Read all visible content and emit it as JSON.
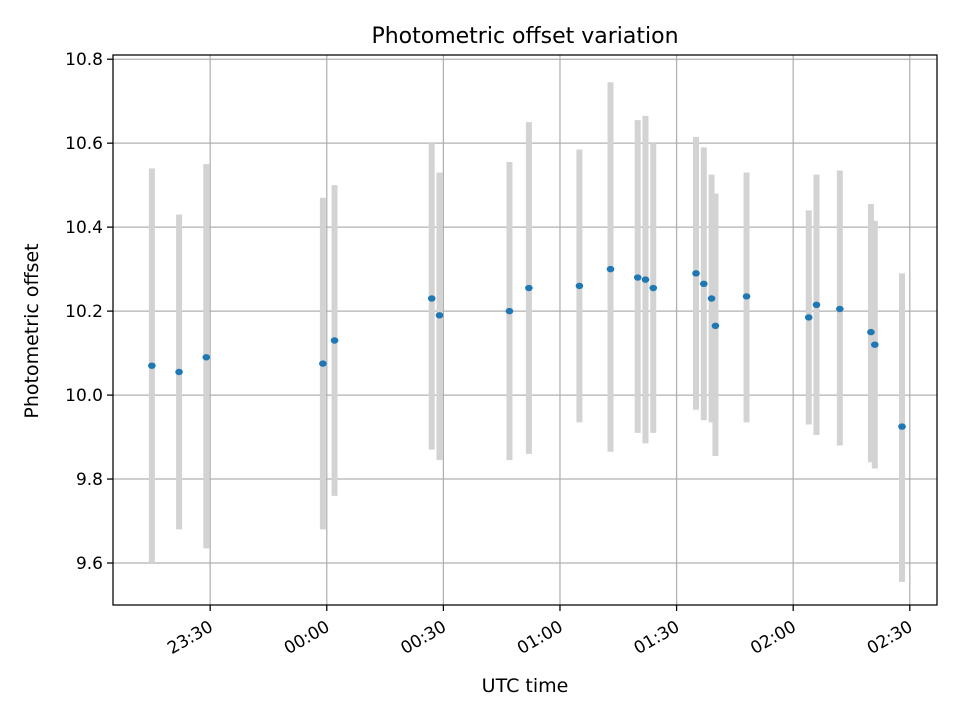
{
  "chart_data": {
    "type": "scatter",
    "title": "Photometric offset variation",
    "xlabel": "UTC time",
    "ylabel": "Photometric offset",
    "x_axis_kind": "time-of-day (wraps past midnight)",
    "xlim": [
      "23:05",
      "02:37"
    ],
    "ylim": [
      9.5,
      10.81
    ],
    "xticks": [
      "23:30",
      "00:00",
      "00:30",
      "01:00",
      "01:30",
      "02:00",
      "02:30"
    ],
    "yticks": [
      9.6,
      9.8,
      10.0,
      10.2,
      10.4,
      10.6,
      10.8
    ],
    "ytick_labels": [
      "9.6",
      "9.8",
      "10.0",
      "10.2",
      "10.4",
      "10.6",
      "10.8"
    ],
    "grid": true,
    "legend": "none",
    "colors": {
      "point": "#1f77b4",
      "errorbar": "#d3d3d3",
      "grid": "#b0b0b0"
    },
    "series": [
      {
        "marker": "point with vertical error bar",
        "points": [
          {
            "x": "23:15",
            "y": 10.07,
            "ylow": 9.6,
            "yhigh": 10.54
          },
          {
            "x": "23:22",
            "y": 10.055,
            "ylow": 9.68,
            "yhigh": 10.43
          },
          {
            "x": "23:29",
            "y": 10.09,
            "ylow": 9.635,
            "yhigh": 10.55
          },
          {
            "x": "23:59",
            "y": 10.075,
            "ylow": 9.68,
            "yhigh": 10.47
          },
          {
            "x": "00:02",
            "y": 10.13,
            "ylow": 9.76,
            "yhigh": 10.5
          },
          {
            "x": "00:27",
            "y": 10.23,
            "ylow": 9.87,
            "yhigh": 10.6
          },
          {
            "x": "00:29",
            "y": 10.19,
            "ylow": 9.845,
            "yhigh": 10.53
          },
          {
            "x": "00:47",
            "y": 10.2,
            "ylow": 9.845,
            "yhigh": 10.555
          },
          {
            "x": "00:52",
            "y": 10.255,
            "ylow": 9.86,
            "yhigh": 10.65
          },
          {
            "x": "01:05",
            "y": 10.26,
            "ylow": 9.935,
            "yhigh": 10.585
          },
          {
            "x": "01:13",
            "y": 10.3,
            "ylow": 9.865,
            "yhigh": 10.745
          },
          {
            "x": "01:20",
            "y": 10.28,
            "ylow": 9.91,
            "yhigh": 10.655
          },
          {
            "x": "01:22",
            "y": 10.275,
            "ylow": 9.885,
            "yhigh": 10.665
          },
          {
            "x": "01:24",
            "y": 10.255,
            "ylow": 9.91,
            "yhigh": 10.6
          },
          {
            "x": "01:35",
            "y": 10.29,
            "ylow": 9.965,
            "yhigh": 10.615
          },
          {
            "x": "01:37",
            "y": 10.265,
            "ylow": 9.94,
            "yhigh": 10.59
          },
          {
            "x": "01:39",
            "y": 10.23,
            "ylow": 9.935,
            "yhigh": 10.525
          },
          {
            "x": "01:40",
            "y": 10.165,
            "ylow": 9.855,
            "yhigh": 10.48
          },
          {
            "x": "01:48",
            "y": 10.235,
            "ylow": 9.935,
            "yhigh": 10.53
          },
          {
            "x": "02:04",
            "y": 10.185,
            "ylow": 9.93,
            "yhigh": 10.44
          },
          {
            "x": "02:06",
            "y": 10.215,
            "ylow": 9.905,
            "yhigh": 10.525
          },
          {
            "x": "02:12",
            "y": 10.205,
            "ylow": 9.88,
            "yhigh": 10.535
          },
          {
            "x": "02:20",
            "y": 10.15,
            "ylow": 9.84,
            "yhigh": 10.455
          },
          {
            "x": "02:21",
            "y": 10.12,
            "ylow": 9.825,
            "yhigh": 10.415
          },
          {
            "x": "02:28",
            "y": 9.925,
            "ylow": 9.555,
            "yhigh": 10.29
          }
        ]
      }
    ]
  }
}
